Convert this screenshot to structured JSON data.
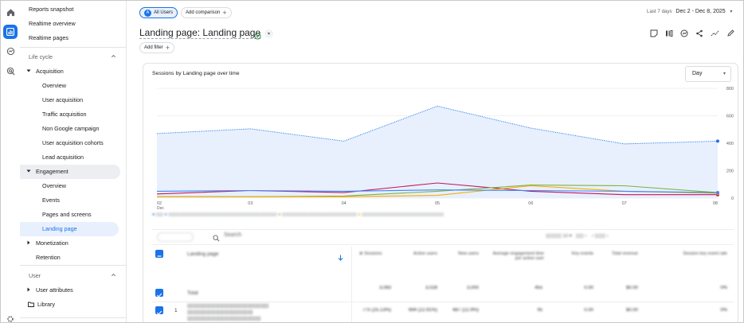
{
  "sidebar": {
    "top_items": [
      "Reports snapshot",
      "Realtime overview",
      "Realtime pages"
    ],
    "section_lifecycle": "Life cycle",
    "acquisition": {
      "label": "Acquisition",
      "children": [
        "Overview",
        "User acquisition",
        "Traffic acquisition",
        "Non Google campaign",
        "User acquisition cohorts",
        "Lead acquisition"
      ]
    },
    "engagement": {
      "label": "Engagement",
      "children": [
        "Overview",
        "Events",
        "Pages and screens",
        "Landing page"
      ]
    },
    "monetization": "Monetization",
    "retention": "Retention",
    "section_user": "User",
    "user_attributes": "User attributes",
    "library": "Library"
  },
  "header": {
    "segment_badge": "A",
    "segment_label": "All Users",
    "add_comparison": "Add comparison",
    "date_prefix": "Last 7 days",
    "date_range": "Dec 2 - Dec 8, 2025",
    "title": "Landing page: Landing page",
    "add_filter": "Add filter"
  },
  "chart_card": {
    "title": "Sessions by Landing page over time",
    "granularity": "Day"
  },
  "chart_data": {
    "type": "line",
    "x": [
      "02 Dec",
      "03",
      "04",
      "05",
      "06",
      "07",
      "08"
    ],
    "ylim": [
      0,
      800
    ],
    "yticks": [
      "800",
      "600",
      "400",
      "200",
      "0"
    ],
    "series": [
      {
        "values": [
          470,
          505,
          415,
          670,
          510,
          395,
          415
        ],
        "color": "#1a73e8",
        "style": "dotted",
        "area": true
      },
      {
        "values": [
          30,
          55,
          40,
          110,
          50,
          25,
          25
        ],
        "color": "#c2185b",
        "style": "solid"
      },
      {
        "values": [
          10,
          10,
          15,
          50,
          95,
          90,
          40
        ],
        "color": "#7cb342",
        "style": "solid"
      },
      {
        "values": [
          10,
          10,
          10,
          20,
          90,
          50,
          35
        ],
        "color": "#f9ab00",
        "style": "solid"
      },
      {
        "values": [
          50,
          55,
          50,
          60,
          55,
          50,
          40
        ],
        "color": "#4285f4",
        "style": "solid"
      }
    ]
  },
  "table": {
    "search_placeholder": "Search",
    "columns": {
      "landing": "Landing page",
      "sessions": "Sessions",
      "active_users": "Active users",
      "new_users": "New users",
      "avg_engagement": "Average engagement time per active user",
      "key_events": "Key events",
      "total_revenue": "Total revenue",
      "session_key_event_rate": "Session key event rate"
    },
    "rows": [
      {
        "label": "Total",
        "sessions": "3,083",
        "active": "3,028",
        "new": "3,000",
        "avg": "45s",
        "key": "0.00",
        "rev": "$0.00",
        "rate": "0%"
      },
      {
        "label": "1",
        "sessions": "775 (25.13%)",
        "active": "694 (22.91%)",
        "new": "687 (22.9%)",
        "avg": "9s",
        "key": "0.00",
        "rev": "$0.00",
        "rate": "0%"
      }
    ]
  }
}
